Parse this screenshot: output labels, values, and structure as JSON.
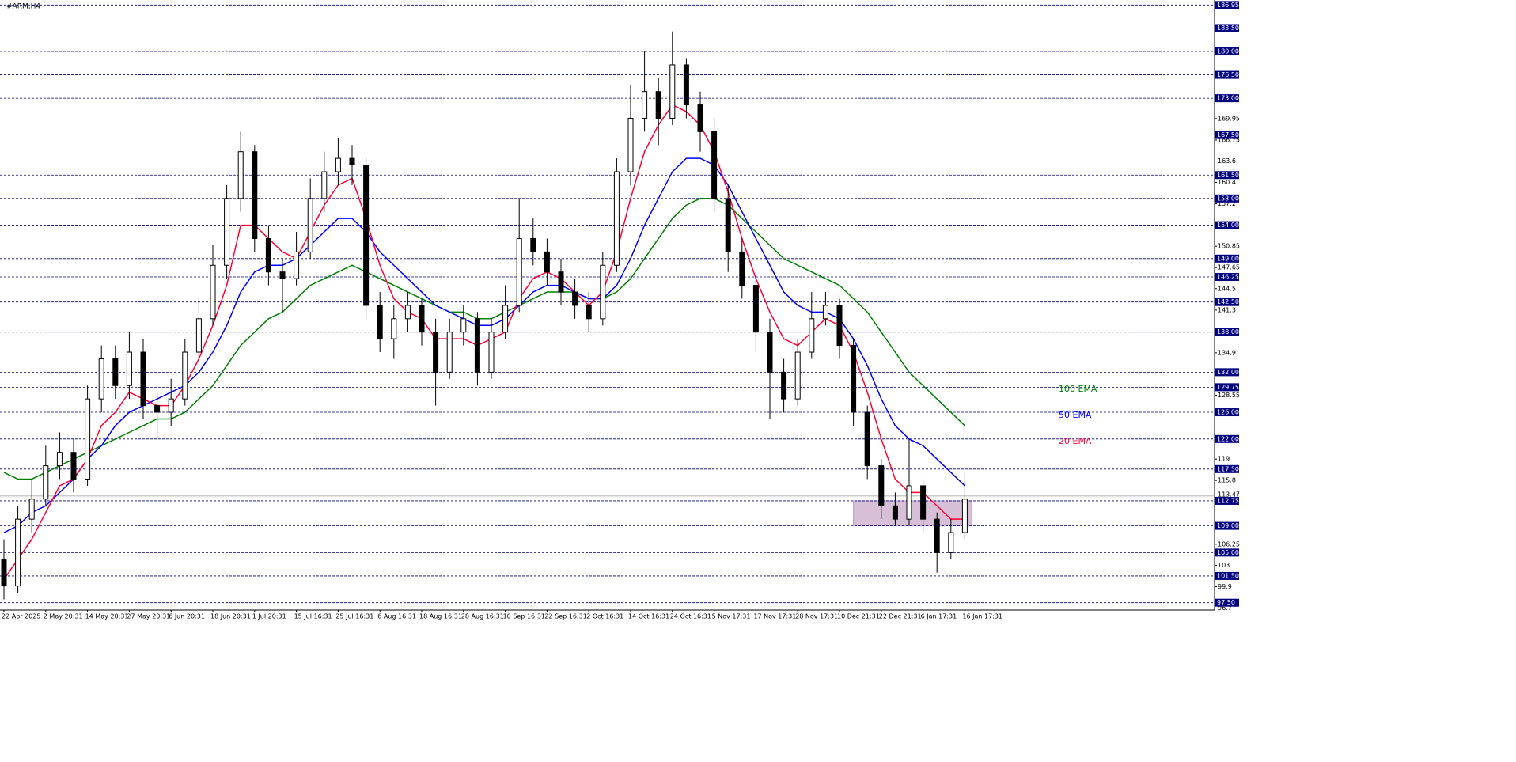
{
  "chart_data": {
    "type": "candlestick",
    "title": "#ARM,H4",
    "categories": [
      "22 Apr 2025",
      null,
      null,
      "2 May 20:31",
      null,
      null,
      "14 May 20:31",
      null,
      null,
      "27 May 20:31",
      null,
      null,
      "6 Jun 20:31",
      null,
      null,
      "18 Jun 20:31",
      null,
      null,
      "1 Jul 20:31",
      null,
      null,
      "15 Jul 16:31",
      null,
      null,
      "25 Jul 16:31",
      null,
      null,
      "6 Aug 16:31",
      null,
      null,
      "18 Aug 16:31",
      null,
      null,
      "28 Aug 16:31",
      null,
      null,
      "10 Sep 16:31",
      null,
      null,
      "22 Sep 16:31",
      null,
      null,
      "2 Oct 16:31",
      null,
      null,
      "14 Oct 16:31",
      null,
      null,
      "24 Oct 16:31",
      null,
      null,
      "5 Nov 17:31",
      null,
      null,
      "17 Nov 17:31",
      null,
      null,
      "28 Nov 17:31",
      null,
      null,
      "10 Dec 21:31",
      null,
      null,
      "22 Dec 21:31",
      null,
      null,
      "6 Jan 17:31",
      null,
      null,
      "16 Jan 17:31"
    ],
    "open": [
      104,
      100,
      110,
      113,
      118,
      120,
      116,
      128,
      134,
      130,
      135,
      127,
      126,
      128,
      135,
      140,
      148,
      158,
      165,
      152,
      147,
      146,
      150,
      158,
      162,
      164,
      163,
      142,
      137,
      140,
      142,
      138,
      132,
      138,
      140,
      132,
      138,
      142,
      152,
      150,
      147,
      144,
      142,
      140,
      148,
      162,
      170,
      174,
      170,
      178,
      172,
      168,
      158,
      150,
      145,
      138,
      132,
      128,
      135,
      140,
      142,
      136,
      126,
      118,
      112,
      110,
      115,
      110,
      105,
      108
    ],
    "high": [
      107,
      112,
      116,
      121,
      123,
      122,
      130,
      136,
      136,
      138,
      137,
      129,
      131,
      137,
      143,
      151,
      160,
      168,
      166,
      154,
      149,
      153,
      161,
      165,
      167,
      166,
      164,
      144,
      142,
      144,
      143,
      140,
      140,
      142,
      141,
      140,
      145,
      158,
      155,
      152,
      149,
      146,
      144,
      150,
      164,
      175,
      180,
      176,
      183,
      179,
      174,
      170,
      160,
      152,
      147,
      140,
      134,
      137,
      144,
      144,
      143,
      137,
      127,
      119,
      114,
      122,
      116,
      111,
      110,
      117
    ],
    "low": [
      98,
      99,
      108,
      112,
      116,
      114,
      115,
      126,
      128,
      128,
      125,
      122,
      124,
      127,
      134,
      139,
      146,
      156,
      150,
      145,
      141,
      145,
      149,
      156,
      160,
      160,
      140,
      135,
      134,
      138,
      136,
      127,
      131,
      136,
      130,
      131,
      137,
      141,
      148,
      145,
      142,
      140,
      138,
      139,
      147,
      160,
      168,
      166,
      169,
      170,
      165,
      156,
      147,
      143,
      135,
      125,
      126,
      127,
      134,
      139,
      134,
      124,
      116,
      110,
      109,
      109,
      108,
      102,
      104,
      107
    ],
    "close": [
      100,
      110,
      113,
      118,
      120,
      116,
      128,
      134,
      130,
      135,
      127,
      126,
      128,
      135,
      140,
      148,
      158,
      165,
      152,
      147,
      146,
      150,
      158,
      162,
      164,
      163,
      142,
      137,
      140,
      142,
      138,
      132,
      138,
      140,
      132,
      138,
      142,
      152,
      150,
      147,
      144,
      142,
      140,
      148,
      162,
      170,
      174,
      170,
      178,
      172,
      168,
      158,
      150,
      145,
      138,
      132,
      128,
      135,
      140,
      142,
      136,
      126,
      118,
      112,
      110,
      115,
      110,
      105,
      108,
      113
    ],
    "up_color": "#ffffff",
    "down_color": "#000000",
    "series": [
      {
        "name": "100 EMA",
        "color": "#008000",
        "values": [
          117,
          116,
          116,
          117,
          118,
          119,
          120,
          121,
          122,
          123,
          124,
          125,
          125,
          126,
          128,
          130,
          133,
          136,
          138,
          140,
          141,
          143,
          145,
          146,
          147,
          148,
          147,
          146,
          145,
          144,
          143,
          142,
          141,
          141,
          140,
          140,
          141,
          142,
          143,
          144,
          144,
          144,
          143,
          143,
          144,
          146,
          149,
          152,
          155,
          157,
          158,
          158,
          157,
          155,
          153,
          151,
          149,
          148,
          147,
          146,
          145,
          143,
          141,
          138,
          135,
          132,
          130,
          128,
          126,
          124
        ]
      },
      {
        "name": "50 EMA",
        "color": "#0000ff",
        "values": [
          108,
          109,
          111,
          112,
          114,
          116,
          119,
          121,
          124,
          126,
          127,
          128,
          129,
          130,
          132,
          135,
          139,
          144,
          147,
          148,
          148,
          149,
          151,
          153,
          155,
          155,
          153,
          150,
          148,
          146,
          144,
          142,
          141,
          140,
          139,
          139,
          140,
          142,
          144,
          145,
          145,
          144,
          143,
          143,
          145,
          149,
          154,
          158,
          162,
          164,
          164,
          163,
          160,
          156,
          152,
          148,
          144,
          142,
          141,
          141,
          140,
          137,
          133,
          128,
          124,
          122,
          121,
          119,
          117,
          115
        ]
      },
      {
        "name": "20 EMA",
        "color": "#ff0033",
        "values": [
          101,
          104,
          107,
          111,
          115,
          116,
          119,
          124,
          126,
          129,
          128,
          127,
          127,
          130,
          134,
          139,
          145,
          154,
          154,
          152,
          150,
          149,
          153,
          157,
          160,
          161,
          155,
          148,
          143,
          141,
          140,
          137,
          137,
          137,
          136,
          137,
          138,
          143,
          146,
          147,
          146,
          144,
          142,
          144,
          150,
          158,
          165,
          169,
          172,
          171,
          169,
          165,
          159,
          152,
          146,
          141,
          137,
          136,
          138,
          140,
          139,
          135,
          129,
          122,
          116,
          114,
          114,
          112,
          110,
          110
        ]
      }
    ],
    "ylim": [
      96.4,
      187.7
    ],
    "yticks": [
      169.95,
      166.75,
      163.6,
      160.4,
      157.2,
      150.85,
      147.65,
      144.5,
      141.3,
      134.9,
      128.55,
      119,
      115.8,
      106.25,
      103.1,
      99.9,
      96.7
    ],
    "levels": [
      {
        "value": 186.95,
        "label": "186.95"
      },
      {
        "value": 183.5,
        "label": "183.50"
      },
      {
        "value": 180,
        "label": "180.00"
      },
      {
        "value": 176.5,
        "label": "176.50"
      },
      {
        "value": 173,
        "label": "173.00"
      },
      {
        "value": 167.5,
        "label": "167.50"
      },
      {
        "value": 161.5,
        "label": "161.50"
      },
      {
        "value": 158,
        "label": "158.00"
      },
      {
        "value": 154,
        "label": "154.00"
      },
      {
        "value": 149,
        "label": "149.00"
      },
      {
        "value": 146.25,
        "label": "146.25"
      },
      {
        "value": 142.5,
        "label": "142.50"
      },
      {
        "value": 138,
        "label": "138.00"
      },
      {
        "value": 132,
        "label": "132.00"
      },
      {
        "value": 129.75,
        "label": "129.75"
      },
      {
        "value": 126,
        "label": "126.00"
      },
      {
        "value": 122,
        "label": "122.00"
      },
      {
        "value": 117.5,
        "label": "117.50"
      },
      {
        "value": 112.75,
        "label": "112.75"
      },
      {
        "value": 109,
        "label": "109.00"
      },
      {
        "value": 105,
        "label": "105.00"
      },
      {
        "value": 101.5,
        "label": "101.50"
      },
      {
        "value": 97.5,
        "label": "97.50"
      }
    ],
    "current_price": 113.47,
    "zone": {
      "y_range": [
        109,
        112.75
      ],
      "x_range": [
        61,
        69.5
      ],
      "color": "#d8bfd8"
    }
  }
}
